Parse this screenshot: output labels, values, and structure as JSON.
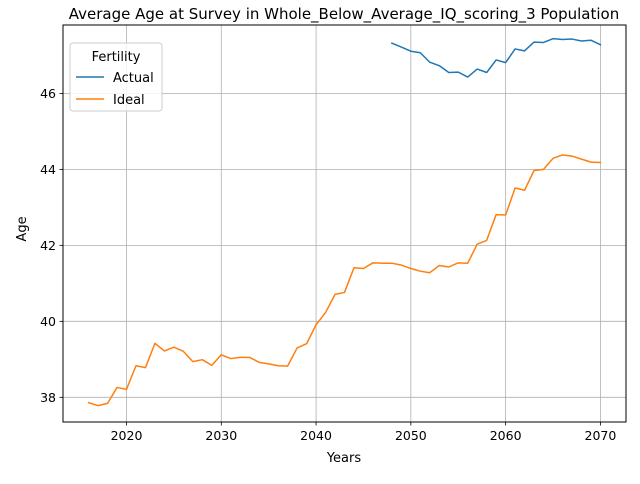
{
  "chart_data": {
    "type": "line",
    "title": "Average Age at Survey in Whole_Below_Average_IQ_scoring_3 Population",
    "xlabel": "Years",
    "ylabel": "Age",
    "xlim": [
      2013.3,
      2072.7
    ],
    "ylim": [
      37.35,
      47.8
    ],
    "xticks": [
      2020,
      2030,
      2040,
      2050,
      2060,
      2070
    ],
    "yticks": [
      38,
      40,
      42,
      44,
      46
    ],
    "grid": true,
    "legend": {
      "title": "Fertility",
      "position": "top-left"
    },
    "colors": {
      "Actual": "#1f77b4",
      "Ideal": "#ff7f0e"
    },
    "series": [
      {
        "name": "Actual",
        "x": [
          2048,
          2049,
          2050,
          2051,
          2052,
          2053,
          2054,
          2055,
          2056,
          2057,
          2058,
          2059,
          2060,
          2061,
          2062,
          2063,
          2064,
          2065,
          2066,
          2067,
          2068,
          2069,
          2070
        ],
        "y": [
          47.32,
          47.22,
          47.11,
          47.07,
          46.82,
          46.73,
          46.55,
          46.56,
          46.43,
          46.64,
          46.55,
          46.88,
          46.81,
          47.17,
          47.12,
          47.35,
          47.34,
          47.44,
          47.42,
          47.43,
          47.38,
          47.4,
          47.28
        ]
      },
      {
        "name": "Ideal",
        "x": [
          2016,
          2017,
          2018,
          2019,
          2020,
          2021,
          2022,
          2023,
          2024,
          2025,
          2026,
          2027,
          2028,
          2029,
          2030,
          2031,
          2032,
          2033,
          2034,
          2035,
          2036,
          2037,
          2038,
          2039,
          2040,
          2041,
          2042,
          2043,
          2044,
          2045,
          2046,
          2047,
          2048,
          2049,
          2050,
          2051,
          2052,
          2053,
          2054,
          2055,
          2056,
          2057,
          2058,
          2059,
          2060,
          2061,
          2062,
          2063,
          2064,
          2065,
          2066,
          2067,
          2068,
          2069,
          2070
        ],
        "y": [
          37.86,
          37.78,
          37.84,
          38.26,
          38.21,
          38.83,
          38.78,
          39.42,
          39.22,
          39.32,
          39.21,
          38.94,
          38.99,
          38.84,
          39.12,
          39.02,
          39.05,
          39.05,
          38.92,
          38.88,
          38.83,
          38.82,
          39.3,
          39.41,
          39.91,
          40.23,
          40.71,
          40.76,
          41.41,
          41.39,
          41.54,
          41.53,
          41.53,
          41.48,
          41.39,
          41.32,
          41.28,
          41.47,
          41.43,
          41.54,
          41.53,
          42.03,
          42.13,
          42.81,
          42.8,
          43.51,
          43.45,
          43.97,
          44.0,
          44.29,
          44.38,
          44.35,
          44.27,
          44.19,
          44.18
        ]
      }
    ]
  }
}
